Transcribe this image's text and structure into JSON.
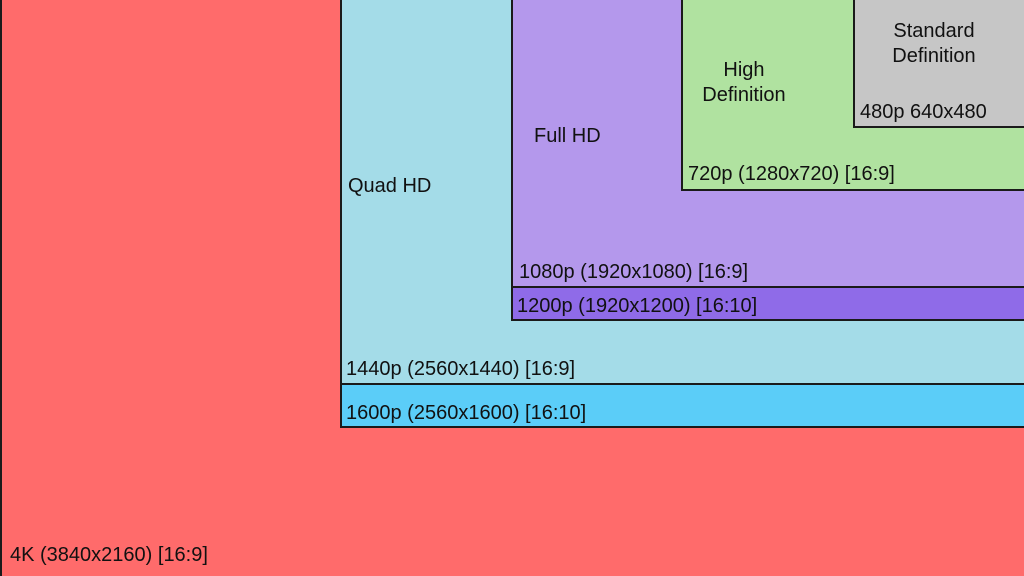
{
  "colors": {
    "k4": "#ff6b6b",
    "p1600": "#5bcdf8",
    "p1440": "#a4dce8",
    "p1200": "#8f6be8",
    "p1080": "#b498ec",
    "p720": "#b0e2a0",
    "p480": "#c6c6c6"
  },
  "labels": {
    "k4": "4K (3840x2160) [16:9]",
    "p1600": "1600p (2560x1600) [16:10]",
    "p1440": "1440p (2560x1440) [16:9]",
    "p1200": "1200p (1920x1200) [16:10]",
    "p1080": "1080p (1920x1080) [16:9]",
    "p720": "720p (1280x720) [16:9]",
    "p480": "480p 640x480"
  },
  "names": {
    "quad_hd": "Quad HD",
    "full_hd": "Full HD",
    "high_def_line1": "High",
    "high_def_line2": "Definition",
    "std_def_line1": "Standard",
    "std_def_line2": "Definition"
  }
}
